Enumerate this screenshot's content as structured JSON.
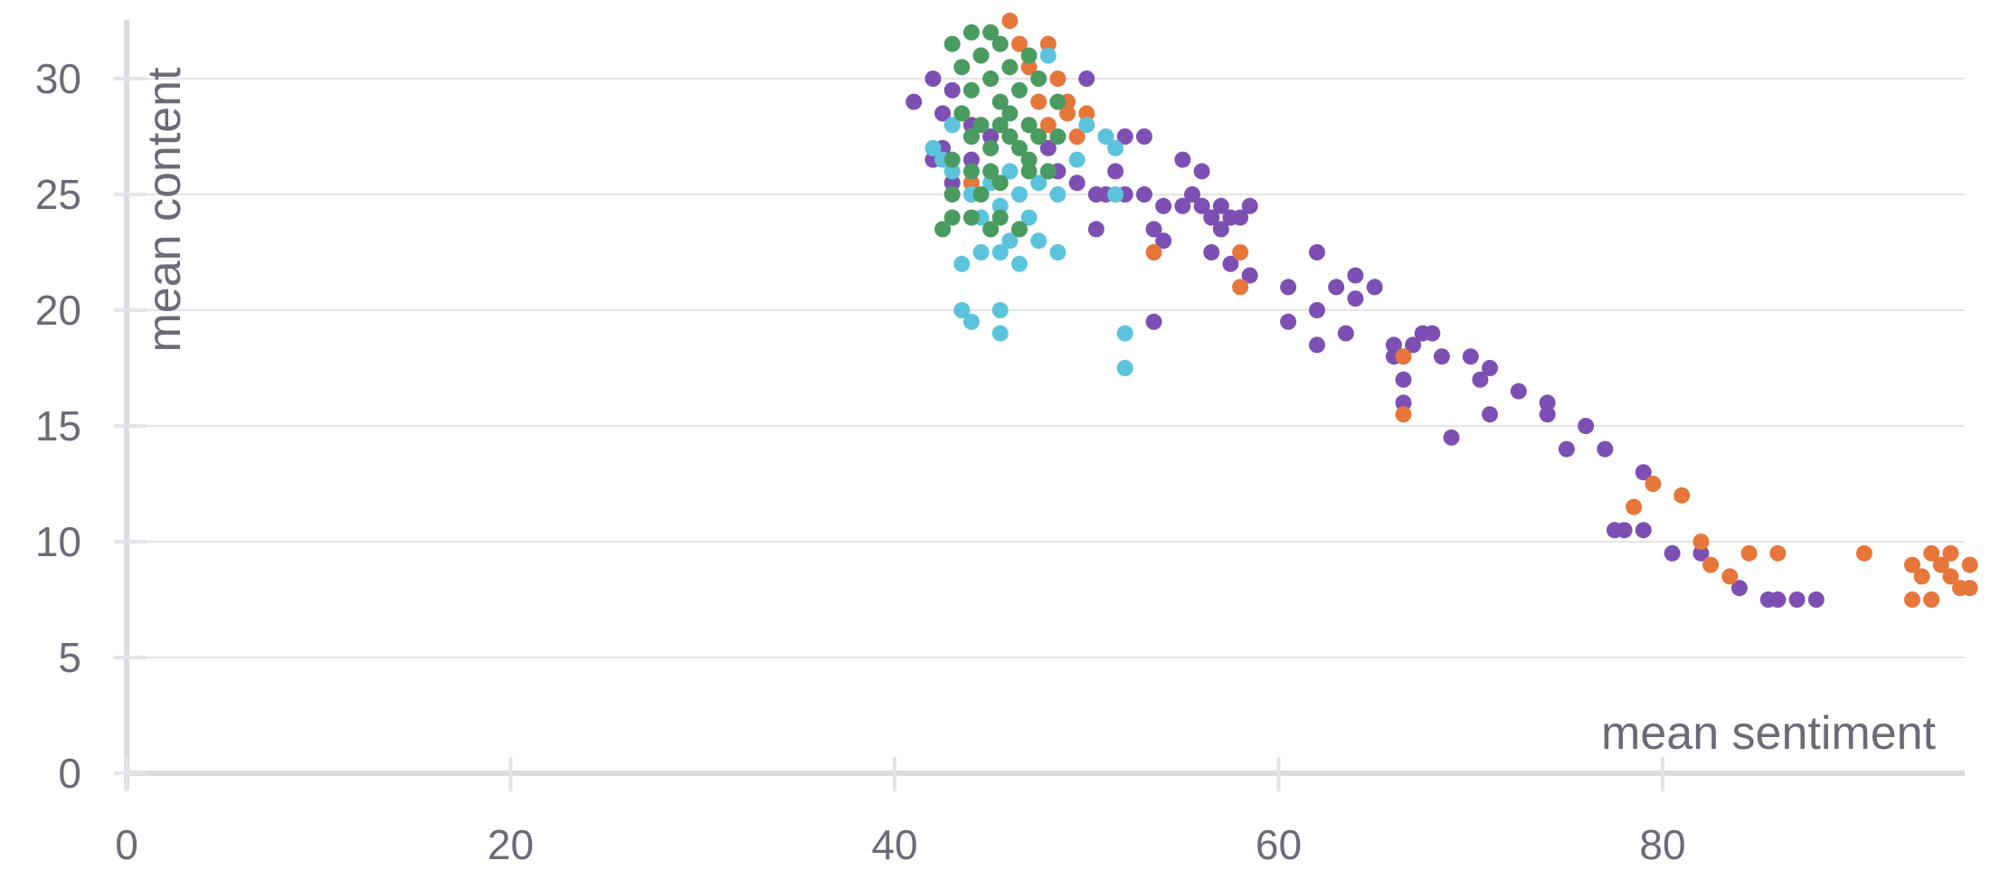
{
  "chart_data": {
    "type": "scatter",
    "xlabel": "mean sentiment",
    "ylabel": "mean content",
    "xlim": [
      0,
      96
    ],
    "ylim": [
      0,
      32
    ],
    "xticks": [
      0,
      20,
      40,
      60,
      80
    ],
    "yticks": [
      0,
      5,
      10,
      15,
      20,
      25,
      30
    ],
    "grid": "horizontal",
    "legend": "none",
    "series": [
      {
        "color": "#7e4fb3",
        "points": [
          [
            41,
            29
          ],
          [
            42,
            30
          ],
          [
            42.5,
            28.5
          ],
          [
            43,
            29.5
          ],
          [
            42,
            26.5
          ],
          [
            43,
            25.5
          ],
          [
            42.5,
            27
          ],
          [
            44,
            28
          ],
          [
            45,
            27.5
          ],
          [
            44,
            26.5
          ],
          [
            48,
            27
          ],
          [
            48.5,
            26
          ],
          [
            49.5,
            25.5
          ],
          [
            50,
            30
          ],
          [
            50.5,
            25
          ],
          [
            51,
            25
          ],
          [
            51.5,
            26
          ],
          [
            52,
            27.5
          ],
          [
            52,
            25
          ],
          [
            53,
            27.5
          ],
          [
            53,
            25
          ],
          [
            53.5,
            23.5
          ],
          [
            54,
            23
          ],
          [
            54,
            24.5
          ],
          [
            55,
            26.5
          ],
          [
            55,
            24.5
          ],
          [
            55.5,
            25
          ],
          [
            56,
            24.5
          ],
          [
            56,
            26
          ],
          [
            56.5,
            24
          ],
          [
            56.5,
            22.5
          ],
          [
            57,
            23.5
          ],
          [
            57,
            24.5
          ],
          [
            57.5,
            24
          ],
          [
            57.5,
            22
          ],
          [
            58,
            24
          ],
          [
            58.5,
            24.5
          ],
          [
            58.5,
            21.5
          ],
          [
            50.5,
            23.5
          ],
          [
            53.5,
            19.5
          ],
          [
            60.5,
            21
          ],
          [
            60.5,
            19.5
          ],
          [
            62,
            22.5
          ],
          [
            62,
            20
          ],
          [
            62,
            18.5
          ],
          [
            63,
            21
          ],
          [
            63.5,
            19
          ],
          [
            64,
            21.5
          ],
          [
            64,
            20.5
          ],
          [
            65,
            21
          ],
          [
            66,
            18.5
          ],
          [
            66,
            18
          ],
          [
            66.5,
            17
          ],
          [
            66.5,
            16
          ],
          [
            67,
            18.5
          ],
          [
            67.5,
            19
          ],
          [
            68,
            19
          ],
          [
            68.5,
            18
          ],
          [
            69,
            14.5
          ],
          [
            70,
            18
          ],
          [
            70.5,
            17
          ],
          [
            71,
            17.5
          ],
          [
            71,
            15.5
          ],
          [
            72.5,
            16.5
          ],
          [
            74,
            16
          ],
          [
            74,
            15.5
          ],
          [
            75,
            14
          ],
          [
            76,
            15
          ],
          [
            77,
            14
          ],
          [
            77.5,
            10.5
          ],
          [
            78,
            10.5
          ],
          [
            79,
            13
          ],
          [
            79,
            10.5
          ],
          [
            80.5,
            9.5
          ],
          [
            82,
            9.5
          ],
          [
            84,
            8
          ],
          [
            85.5,
            7.5
          ],
          [
            86,
            7.5
          ],
          [
            87,
            7.5
          ],
          [
            88,
            7.5
          ]
        ]
      },
      {
        "color": "#e6763a",
        "points": [
          [
            46,
            32.5
          ],
          [
            46.5,
            31.5
          ],
          [
            47,
            30.5
          ],
          [
            47.5,
            29
          ],
          [
            48,
            31.5
          ],
          [
            48.5,
            30
          ],
          [
            49,
            28.5
          ],
          [
            48,
            28
          ],
          [
            49,
            29
          ],
          [
            50,
            28.5
          ],
          [
            49.5,
            27.5
          ],
          [
            44,
            25.5
          ],
          [
            53.5,
            22.5
          ],
          [
            58,
            22.5
          ],
          [
            58,
            21
          ],
          [
            66.5,
            18
          ],
          [
            66.5,
            15.5
          ],
          [
            78.5,
            11.5
          ],
          [
            79.5,
            12.5
          ],
          [
            81,
            12
          ],
          [
            82,
            10
          ],
          [
            82.5,
            9
          ],
          [
            83.5,
            8.5
          ],
          [
            84.5,
            9.5
          ],
          [
            86,
            9.5
          ],
          [
            90.5,
            9.5
          ],
          [
            93,
            9
          ],
          [
            93,
            7.5
          ],
          [
            93.5,
            8.5
          ],
          [
            94,
            9.5
          ],
          [
            94,
            7.5
          ],
          [
            94.5,
            9
          ],
          [
            95,
            8.5
          ],
          [
            95,
            9.5
          ],
          [
            95.5,
            8
          ],
          [
            96,
            9
          ],
          [
            96,
            8
          ]
        ]
      },
      {
        "color": "#5bc4dc",
        "points": [
          [
            42,
            27
          ],
          [
            42.5,
            26.5
          ],
          [
            43,
            28
          ],
          [
            43,
            26
          ],
          [
            44,
            27.5
          ],
          [
            44,
            25
          ],
          [
            44.5,
            24
          ],
          [
            45,
            25.5
          ],
          [
            45,
            23.5
          ],
          [
            45.5,
            24.5
          ],
          [
            46,
            26
          ],
          [
            46,
            23
          ],
          [
            46.5,
            25
          ],
          [
            46.5,
            23.5
          ],
          [
            47,
            24
          ],
          [
            47.5,
            25.5
          ],
          [
            48,
            26
          ],
          [
            48.5,
            25
          ],
          [
            48.5,
            22.5
          ],
          [
            49.5,
            26.5
          ],
          [
            50,
            28
          ],
          [
            51,
            27.5
          ],
          [
            51.5,
            27
          ],
          [
            51.5,
            25
          ],
          [
            43.5,
            22
          ],
          [
            44.5,
            22.5
          ],
          [
            45.5,
            22.5
          ],
          [
            46.5,
            22
          ],
          [
            47.5,
            23
          ],
          [
            48,
            31
          ],
          [
            43.5,
            20
          ],
          [
            44,
            19.5
          ],
          [
            45.5,
            20
          ],
          [
            45.5,
            19
          ],
          [
            52,
            19
          ],
          [
            52,
            17.5
          ]
        ]
      },
      {
        "color": "#4a9b5f",
        "points": [
          [
            43,
            31.5
          ],
          [
            43.5,
            30.5
          ],
          [
            44,
            32
          ],
          [
            44,
            29.5
          ],
          [
            44.5,
            31
          ],
          [
            45,
            32
          ],
          [
            45,
            30
          ],
          [
            45.5,
            31.5
          ],
          [
            45.5,
            29
          ],
          [
            46,
            30.5
          ],
          [
            46,
            28.5
          ],
          [
            46.5,
            29.5
          ],
          [
            47,
            31
          ],
          [
            47,
            28
          ],
          [
            47.5,
            30
          ],
          [
            43.5,
            28.5
          ],
          [
            44,
            27.5
          ],
          [
            44.5,
            28
          ],
          [
            45,
            27
          ],
          [
            45.5,
            28
          ],
          [
            46,
            27.5
          ],
          [
            46.5,
            27
          ],
          [
            47,
            26.5
          ],
          [
            47.5,
            27.5
          ],
          [
            48,
            26
          ],
          [
            48.5,
            27.5
          ],
          [
            48.5,
            29
          ],
          [
            43,
            26.5
          ],
          [
            44,
            26
          ],
          [
            45,
            26
          ],
          [
            45.5,
            25.5
          ],
          [
            44.5,
            25
          ],
          [
            44,
            24
          ],
          [
            43,
            24
          ],
          [
            43,
            25
          ],
          [
            45,
            23.5
          ],
          [
            45.5,
            24
          ],
          [
            42.5,
            23.5
          ],
          [
            47,
            26
          ],
          [
            46.5,
            23.5
          ]
        ]
      }
    ]
  }
}
